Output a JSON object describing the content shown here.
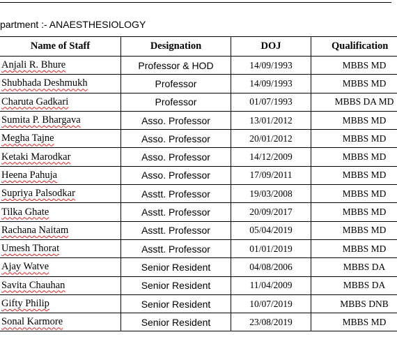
{
  "header": {
    "title": "partment :- ANAESTHESIOLOGY"
  },
  "table": {
    "columns": [
      "Name of Staff",
      "Designation",
      "DOJ",
      "Qualification"
    ],
    "rows": [
      [
        "Anjali R. Bhure",
        "Professor & HOD",
        "14/09/1993",
        "MBBS MD"
      ],
      [
        "Shubhada Deshmukh",
        "Professor",
        "14/09/1993",
        "MBBS MD"
      ],
      [
        "Charuta Gadkari",
        "Professor",
        "01/07/1993",
        "MBBS  DA MD"
      ],
      [
        "Sumita P. Bhargava",
        "Asso. Professor",
        "13/01/2012",
        "MBBS MD"
      ],
      [
        "Megha Tajne",
        "Asso. Professor",
        "20/01/2012",
        "MBBS MD"
      ],
      [
        "Ketaki Marodkar",
        "Asso. Professor",
        "14/12/2009",
        "MBBS MD"
      ],
      [
        "Heena Pahuja",
        "Asso. Professor",
        "17/09/2011",
        "MBBS MD"
      ],
      [
        "Supriya Palsodkar",
        "Asstt. Professor",
        "19/03/2008",
        "MBBS MD"
      ],
      [
        "Tilka Ghate",
        "Asstt. Professor",
        "20/09/2017",
        "MBBS MD"
      ],
      [
        "Rachana Naitam",
        "Asstt. Professor",
        "05/04/2019",
        "MBBS MD"
      ],
      [
        "Umesh Thorat",
        "Asstt. Professor",
        "01/01/2019",
        "MBBS MD"
      ],
      [
        "Ajay Watve",
        "Senior Resident",
        "04/08/2006",
        "MBBS DA"
      ],
      [
        "Savita Chauhan",
        "Senior Resident",
        "11/04/2009",
        "MBBS DA"
      ],
      [
        "Gifty Philip",
        "Senior Resident",
        "10/07/2019",
        "MBBS DNB"
      ],
      [
        "Sonal Karmore",
        "Senior Resident",
        "23/08/2019",
        "MBBS MD"
      ]
    ]
  }
}
